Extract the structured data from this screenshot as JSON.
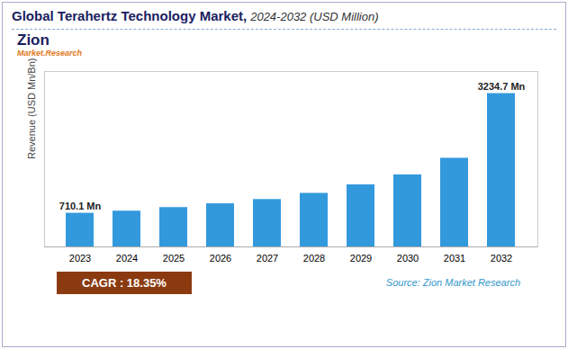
{
  "chart_data": {
    "type": "bar",
    "title": "Global Terahertz Technology Market,",
    "subtitle": "2024-2032 (USD Million)",
    "categories": [
      "2023",
      "2024",
      "2025",
      "2026",
      "2027",
      "2028",
      "2029",
      "2030",
      "2031",
      "2032"
    ],
    "values": [
      710.1,
      755,
      830,
      910,
      1000,
      1130,
      1310,
      1520,
      1870,
      3234.7
    ],
    "color": "#3399DD",
    "ylabel": "Revenue (USD Mn/Bn)",
    "ylim": [
      0,
      3700
    ],
    "yticks": [],
    "tick_labels": "x",
    "grid": false,
    "annotations": [
      {
        "category": "2023",
        "text": "710.1 Mn"
      },
      {
        "category": "2032",
        "text": "3234.7 Mn"
      }
    ],
    "logo": [
      "Zion",
      "Market.Research"
    ],
    "cagr": "CAGR : 18.35%",
    "caption": "Source: Zion Market Research"
  }
}
